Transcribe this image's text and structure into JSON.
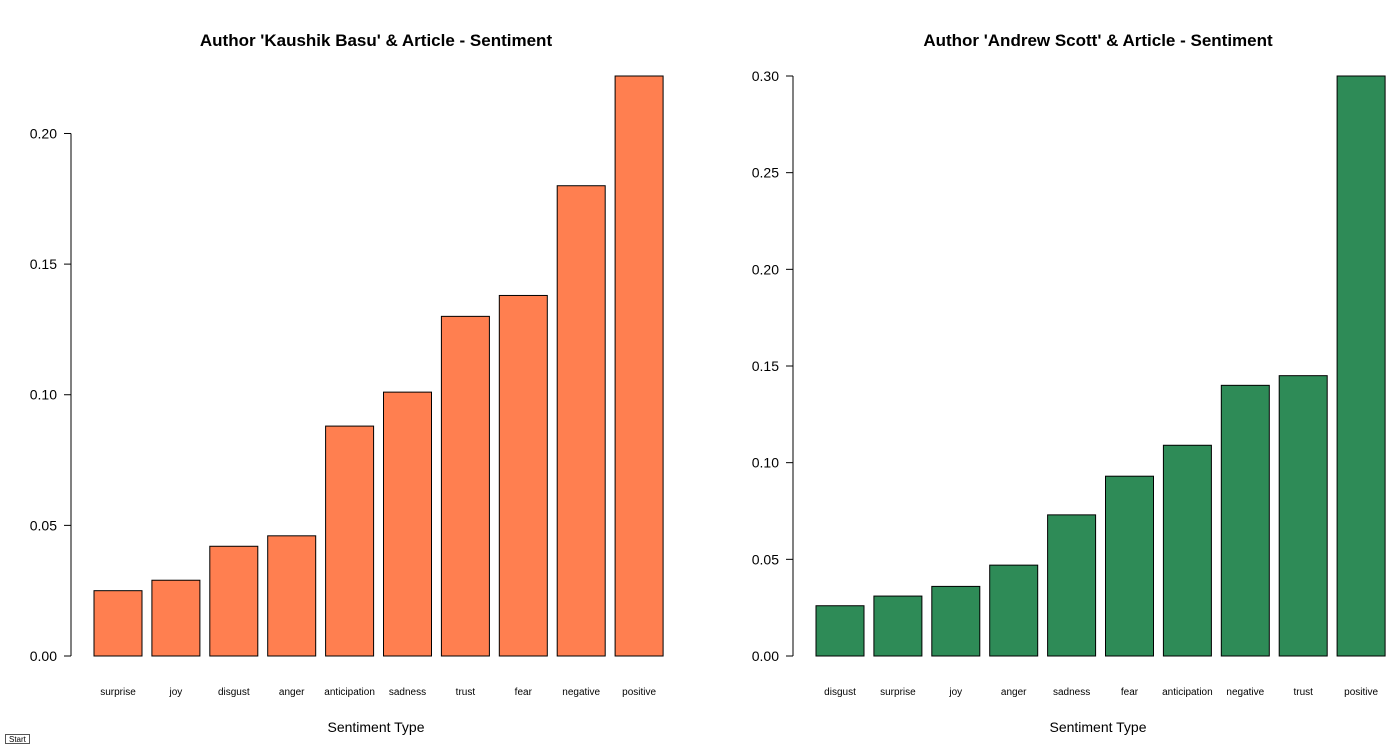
{
  "chart_data": [
    {
      "type": "bar",
      "title": "Author 'Kaushik Basu' & Article - Sentiment",
      "xlabel": "Sentiment Type",
      "ylabel": "",
      "categories": [
        "surprise",
        "joy",
        "disgust",
        "anger",
        "anticipation",
        "sadness",
        "trust",
        "fear",
        "negative",
        "positive"
      ],
      "values": [
        0.025,
        0.029,
        0.042,
        0.046,
        0.088,
        0.101,
        0.13,
        0.138,
        0.18,
        0.222
      ],
      "ylim": [
        0,
        0.222
      ],
      "yticks": [
        0,
        0.05,
        0.1,
        0.15,
        0.2
      ],
      "ytick_labels": [
        "0.00",
        "0.05",
        "0.10",
        "0.15",
        "0.20"
      ],
      "bar_color": "#FF7F50",
      "grid": false
    },
    {
      "type": "bar",
      "title": "Author 'Andrew Scott' & Article - Sentiment",
      "xlabel": "Sentiment Type",
      "ylabel": "",
      "categories": [
        "disgust",
        "surprise",
        "joy",
        "anger",
        "sadness",
        "fear",
        "anticipation",
        "negative",
        "trust",
        "positive"
      ],
      "values": [
        0.026,
        0.031,
        0.036,
        0.047,
        0.073,
        0.093,
        0.109,
        0.14,
        0.145,
        0.3
      ],
      "ylim": [
        0,
        0.3
      ],
      "yticks": [
        0,
        0.05,
        0.1,
        0.15,
        0.2,
        0.25,
        0.3
      ],
      "ytick_labels": [
        "0.00",
        "0.05",
        "0.10",
        "0.15",
        "0.20",
        "0.25",
        "0.30"
      ],
      "bar_color": "#2E8B57",
      "grid": false
    }
  ],
  "ui": {
    "start_label": "Start"
  }
}
